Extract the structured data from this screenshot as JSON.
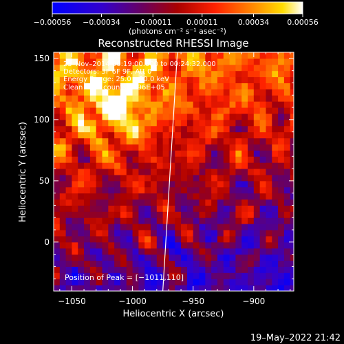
{
  "chart_data": {
    "type": "heatmap",
    "title": "Reconstructed RHESSI Image",
    "xlabel": "Heliocentric X (arcsec)",
    "ylabel": "Heliocentric Y (arcsec)",
    "xlim": [
      -1065,
      -867
    ],
    "ylim": [
      -40,
      155
    ],
    "x_ticks": [
      -1050,
      -1000,
      -950,
      -900
    ],
    "y_ticks": [
      0,
      50,
      100,
      150
    ],
    "x_tick_labels": [
      "−1050",
      "−1000",
      "−950",
      "−900"
    ],
    "y_tick_labels": [
      "0",
      "50",
      "100",
      "150"
    ],
    "colorbar": {
      "range": [
        -0.00056,
        0.00056
      ],
      "ticks": [
        -0.00056,
        -0.00034,
        -0.00011,
        0.00011,
        0.00034,
        0.00056
      ],
      "tick_labels": [
        "−0.00056",
        "−0.00034",
        "−0.00011",
        "0.00011",
        "0.00034",
        "0.00056"
      ],
      "unit_label": "(photons cm⁻² s⁻¹ asec⁻²)"
    },
    "annotations": [
      "25–Nov–2014 00:19:00.000 to 00:24:32.000",
      "Detectors: 3F 6F 9F, Att 0",
      "Energy Range: 25.0 – 50.0 keV",
      "Clean    Total counts: 2.96E+05"
    ],
    "peak_label": "Position of Peak = [−1011,110]",
    "peak": [
      -1011,
      110
    ],
    "limb_line": [
      [
        -975,
        -40
      ],
      [
        -963,
        155
      ]
    ]
  },
  "footer": {
    "date": "19–May–2022 21:42"
  }
}
